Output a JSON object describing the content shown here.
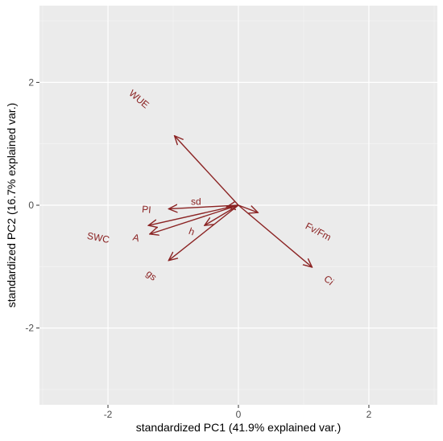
{
  "chart_data": {
    "type": "biplot",
    "title": "",
    "xlabel": "standardized PC1 (41.9% explained var.)",
    "ylabel": "standardized PC2 (16.7% explained var.)",
    "xlim": [
      -3.05,
      3.05
    ],
    "ylim": [
      -3.25,
      3.25
    ],
    "x_ticks": [
      -2,
      0,
      2
    ],
    "x_tick_labels": [
      "-2",
      "0",
      "2"
    ],
    "y_ticks": [
      -2,
      0,
      2
    ],
    "y_tick_labels": [
      "-2",
      "0",
      "2"
    ],
    "grid": true,
    "panel_background": "#ebebeb",
    "arrow_color": "#8b2323",
    "vectors": [
      {
        "name": "WUE",
        "x": -0.98,
        "y": 1.13,
        "label_x": -1.53,
        "label_y": 1.72,
        "label_angle": 40
      },
      {
        "name": "Fv/Fm",
        "x": 0.3,
        "y": -0.12,
        "label_x": 1.22,
        "label_y": -0.44,
        "label_angle": 28
      },
      {
        "name": "Ci",
        "x": 1.13,
        "y": -1.01,
        "label_x": 1.38,
        "label_y": -1.23,
        "label_angle": 41
      },
      {
        "name": "sd",
        "x": -0.18,
        "y": -0.03,
        "label_x": -0.65,
        "label_y": 0.05,
        "label_angle": 0
      },
      {
        "name": "PI",
        "x": -1.07,
        "y": -0.06,
        "label_x": -1.41,
        "label_y": -0.08,
        "label_angle": 5
      },
      {
        "name": "h",
        "x": -0.52,
        "y": -0.33,
        "label_x": -0.72,
        "label_y": -0.44,
        "label_angle": 20
      },
      {
        "name": "SWC",
        "x": -1.38,
        "y": -0.33,
        "label_x": -2.15,
        "label_y": -0.54,
        "label_angle": 11
      },
      {
        "name": "A",
        "x": -1.36,
        "y": -0.47,
        "label_x": -1.57,
        "label_y": -0.54,
        "label_angle": 15
      },
      {
        "name": "gs",
        "x": -1.07,
        "y": -0.9,
        "label_x": -1.34,
        "label_y": -1.15,
        "label_angle": 40
      }
    ]
  }
}
